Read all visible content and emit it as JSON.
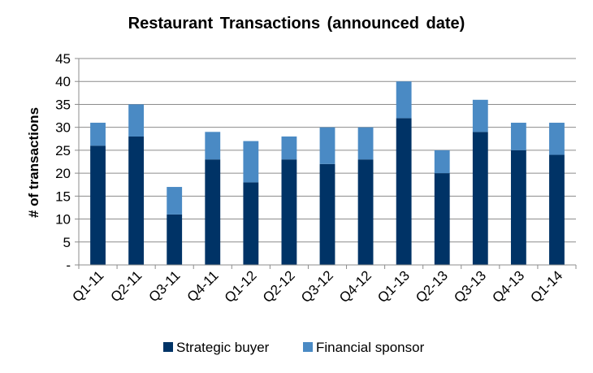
{
  "chart_data": {
    "type": "bar",
    "stacked": true,
    "title": "Restaurant Transactions  (announced date)",
    "xlabel": "",
    "ylabel": "# of transactions",
    "ylim": [
      0,
      45
    ],
    "ytick_step": 5,
    "ytick_labels": [
      "-",
      "5",
      "10",
      "15",
      "20",
      "25",
      "30",
      "35",
      "40",
      "45"
    ],
    "grid": true,
    "legend_position": "bottom",
    "categories": [
      "Q1-11",
      "Q2-11",
      "Q3-11",
      "Q4-11",
      "Q1-12",
      "Q2-12",
      "Q3-12",
      "Q4-12",
      "Q1-13",
      "Q2-13",
      "Q3-13",
      "Q4-13",
      "Q1-14"
    ],
    "series": [
      {
        "name": "Strategic buyer",
        "color": "#003366",
        "values": [
          26,
          28,
          11,
          23,
          18,
          23,
          22,
          23,
          32,
          20,
          29,
          25,
          24
        ]
      },
      {
        "name": "Financial sponsor",
        "color": "#4a8ac4",
        "values": [
          5,
          7,
          6,
          6,
          9,
          5,
          8,
          7,
          8,
          5,
          7,
          6,
          7
        ]
      }
    ]
  }
}
